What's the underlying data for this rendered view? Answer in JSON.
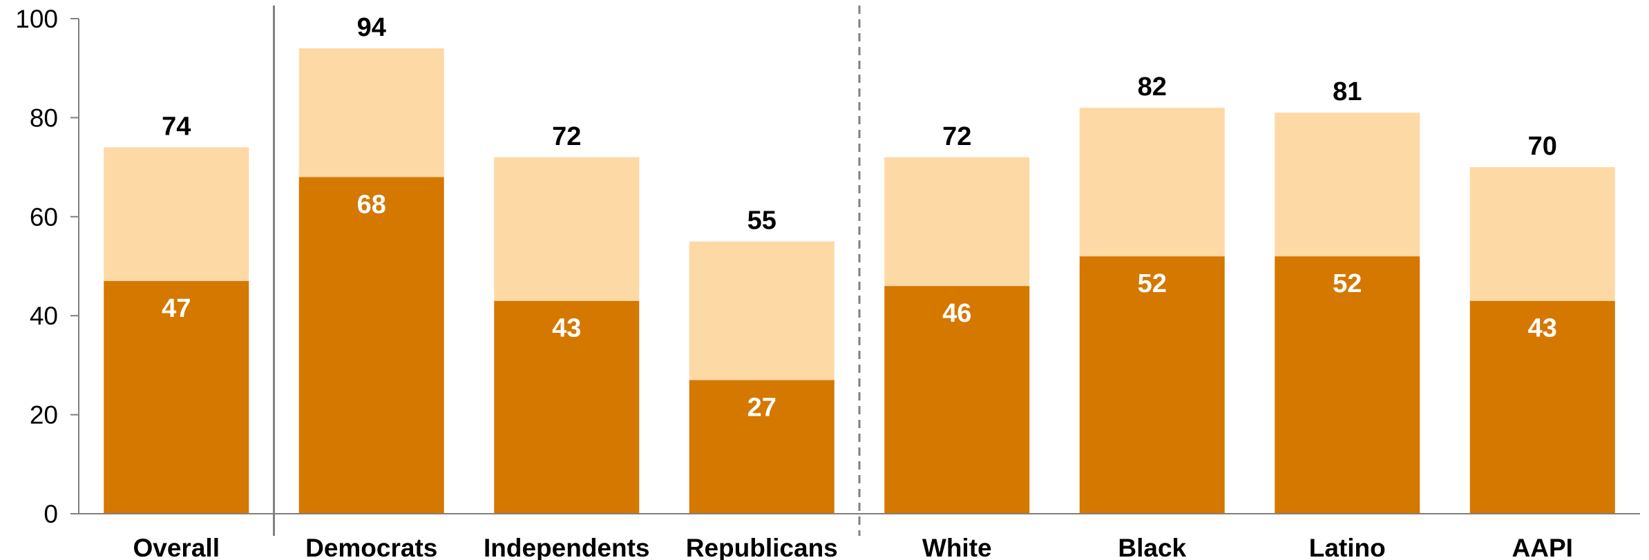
{
  "chart_data": {
    "type": "bar",
    "stacked": true,
    "categories": [
      "Overall",
      "Democrats",
      "Independents",
      "Republicans",
      "White",
      "Black",
      "Latino",
      "AAPI"
    ],
    "series": [
      {
        "values": [
          47,
          68,
          43,
          27,
          46,
          52,
          52,
          43
        ],
        "color": "#d47800"
      },
      {
        "values": [
          27,
          26,
          29,
          28,
          26,
          30,
          29,
          27
        ],
        "color": "#fdd9a5"
      }
    ],
    "totals": [
      74,
      94,
      72,
      55,
      72,
      82,
      81,
      70
    ],
    "ylim": [
      0,
      100
    ],
    "yticks": [
      0,
      20,
      40,
      60,
      80,
      100
    ],
    "ytick_labels": [
      "0",
      "20",
      "40",
      "60",
      "80",
      "100"
    ],
    "title": "",
    "xlabel": "",
    "ylabel": "",
    "legend": "none",
    "grid": false,
    "group_dividers": [
      {
        "after_category": "Overall",
        "style": "solid"
      },
      {
        "after_category": "Republicans",
        "style": "dashed"
      }
    ]
  }
}
